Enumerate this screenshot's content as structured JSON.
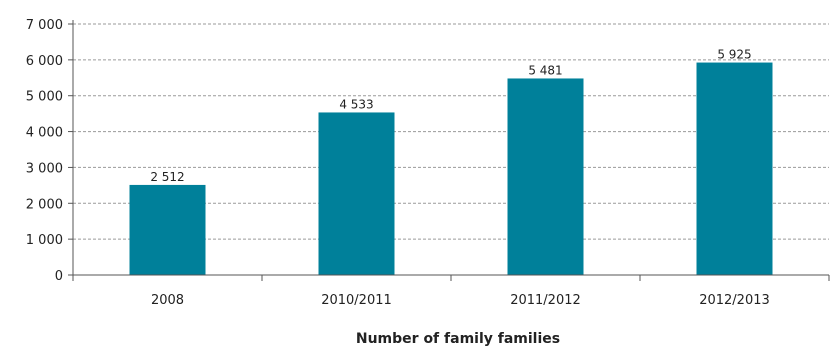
{
  "chart_data": {
    "type": "bar",
    "categories": [
      "2008",
      "2010/2011",
      "2011/2012",
      "2012/2013"
    ],
    "values": [
      2512,
      4533,
      5481,
      5925
    ],
    "value_labels": [
      "2 512",
      "4 533",
      "5 481",
      "5 925"
    ],
    "title": "",
    "xlabel": "Number of family families",
    "ylabel": "",
    "ylim": [
      0,
      7000
    ],
    "yticks": [
      0,
      1000,
      2000,
      3000,
      4000,
      5000,
      6000,
      7000
    ],
    "ytick_labels": [
      "0",
      "1 000",
      "2 000",
      "3 000",
      "4 000",
      "5 000",
      "6 000",
      "7 000"
    ],
    "grid": "horizontal dashed",
    "bar_color": "#00809a",
    "grid_color": "#9a9a9a",
    "axis_color": "#555555"
  }
}
